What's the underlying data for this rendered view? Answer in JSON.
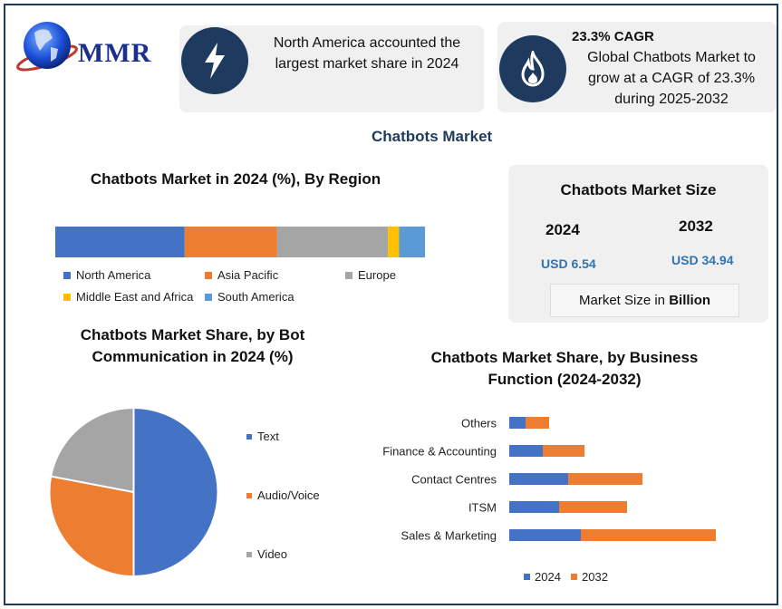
{
  "brand": {
    "logo_text": "MMR"
  },
  "cards": {
    "region": {
      "text": "North America accounted the largest market share in 2024",
      "icon": "lightning-icon"
    },
    "cagr": {
      "headline": "23.3% CAGR",
      "text": "Global Chatbots Market to grow at a CAGR of 23.3% during 2025-2032",
      "icon": "flame-icon"
    }
  },
  "main_title": "Chatbots Market",
  "market_size": {
    "title": "Chatbots Market Size",
    "year_a": "2024",
    "value_a": "USD 6.54",
    "year_b": "2032",
    "value_b": "USD 34.94",
    "unit_prefix": "Market Size in ",
    "unit_bold": "Billion"
  },
  "colors": {
    "blue": "#4472c4",
    "orange": "#ed7d31",
    "gray": "#a5a5a5",
    "yellow": "#ffc000",
    "lightblue": "#5b9bd5",
    "navy": "#1f3a5f"
  },
  "chart_data": [
    {
      "type": "bar",
      "orientation": "horizontal-stacked-100",
      "title": "Chatbots Market in 2024 (%), By Region",
      "series": [
        {
          "name": "North America",
          "values": [
            35
          ],
          "color": "#4472c4"
        },
        {
          "name": "Asia Pacific",
          "values": [
            25
          ],
          "color": "#ed7d31"
        },
        {
          "name": "Europe",
          "values": [
            30
          ],
          "color": "#a5a5a5"
        },
        {
          "name": "Middle East and Africa",
          "values": [
            3
          ],
          "color": "#ffc000"
        },
        {
          "name": "South America",
          "values": [
            7
          ],
          "color": "#5b9bd5"
        }
      ],
      "legend": "bottom"
    },
    {
      "type": "pie",
      "title": "Chatbots Market Share, by Bot Communication in 2024 (%)",
      "slices": [
        {
          "name": "Text",
          "value": 50,
          "color": "#4472c4"
        },
        {
          "name": "Audio/Voice",
          "value": 28,
          "color": "#ed7d31"
        },
        {
          "name": "Video",
          "value": 22,
          "color": "#a5a5a5"
        }
      ],
      "legend": "right"
    },
    {
      "type": "bar",
      "orientation": "horizontal-stacked",
      "title": "Chatbots Market Share, by Business Function (2024-2032)",
      "categories": [
        "Others",
        "Finance & Accounting",
        "Contact Centres",
        "ITSM",
        "Sales & Marketing"
      ],
      "series": [
        {
          "name": "2024",
          "values": [
            1.8,
            3.7,
            6.5,
            5.5,
            7.9
          ],
          "color": "#4472c4"
        },
        {
          "name": "2032",
          "values": [
            2.6,
            4.6,
            8.2,
            7.5,
            14.9
          ],
          "color": "#ed7d31"
        }
      ],
      "legend": "bottom"
    }
  ]
}
